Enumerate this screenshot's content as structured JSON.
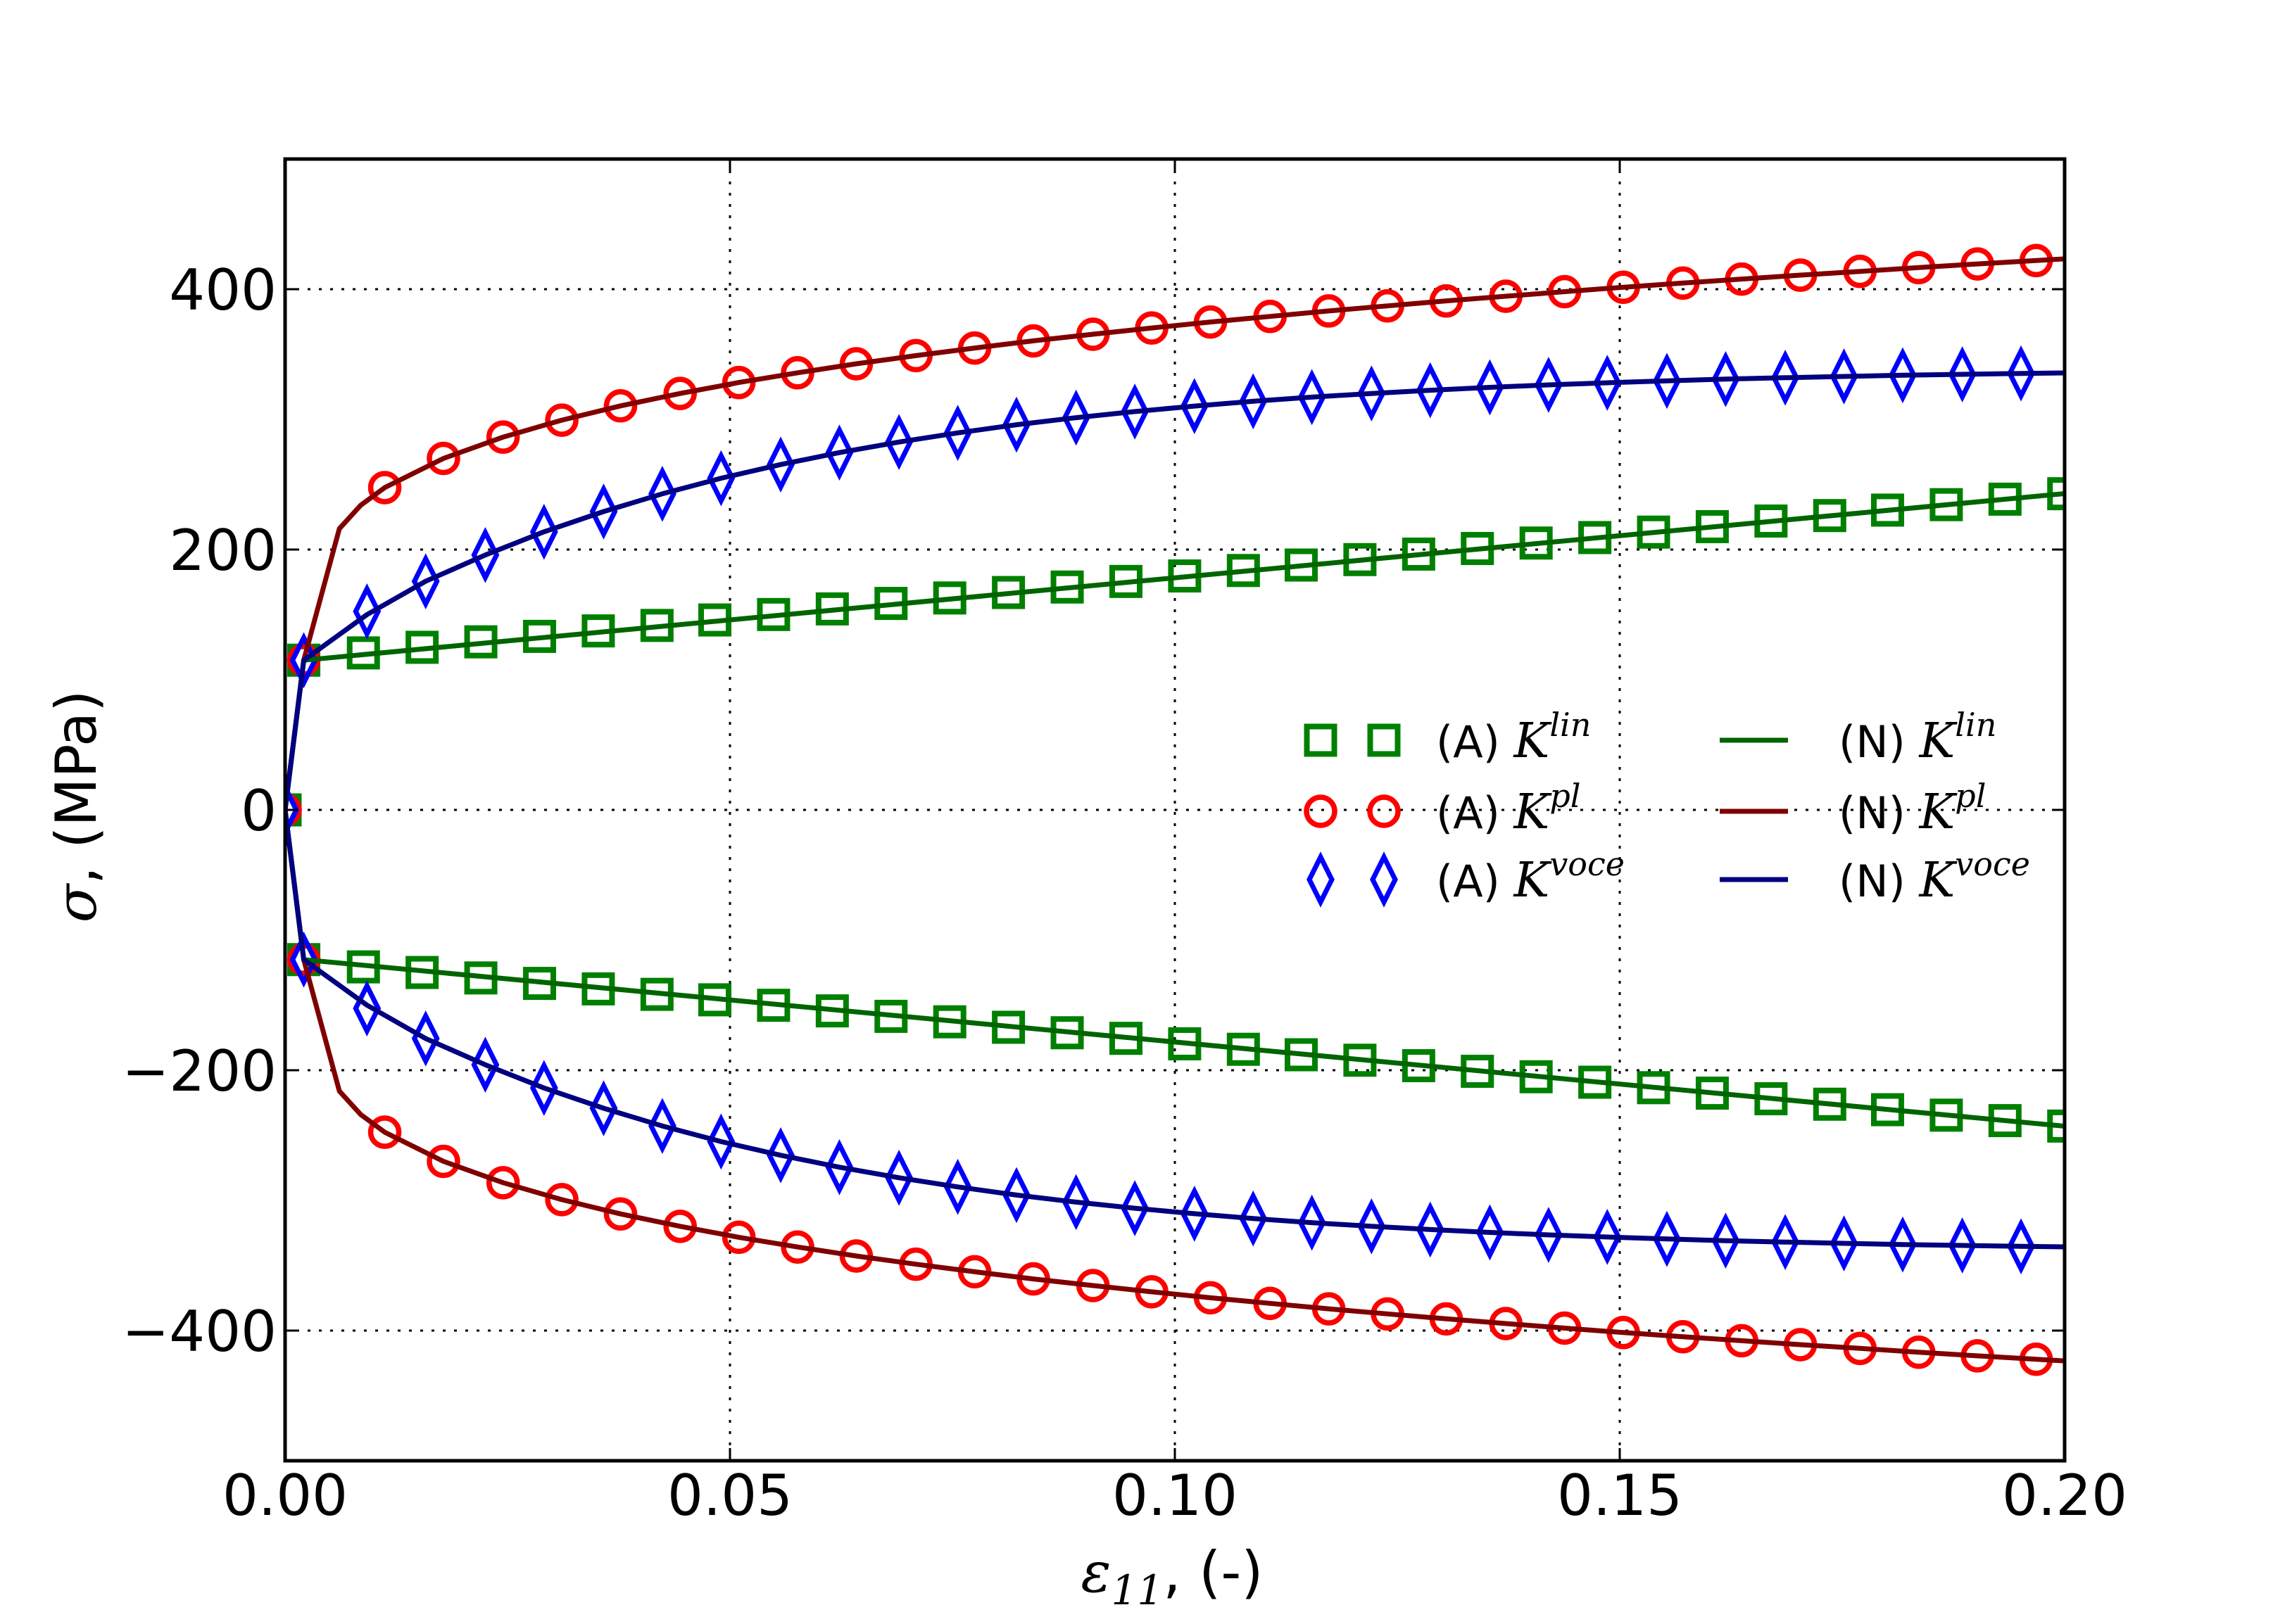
{
  "chart_data": {
    "type": "line",
    "title": "",
    "xlabel": {
      "symbol": "ε",
      "subscript": "11",
      "suffix": ", (-)"
    },
    "ylabel": {
      "symbol": "σ",
      "suffix": ", (MPa)"
    },
    "xlim": [
      0.0,
      0.2
    ],
    "ylim": [
      -500,
      500
    ],
    "xticks": [
      0.0,
      0.05,
      0.1,
      0.15,
      0.2
    ],
    "xtick_labels": [
      "0.00",
      "0.05",
      "0.10",
      "0.15",
      "0.20"
    ],
    "yticks": [
      -400,
      -200,
      0,
      200,
      400
    ],
    "ytick_labels": [
      "−400",
      "−200",
      "0",
      "200",
      "400"
    ],
    "grid": true,
    "legend_position": "center-right",
    "legend": [
      {
        "prefix": "(A) ",
        "symbol": "K",
        "sup": "lin",
        "marker": "square",
        "color": "#008000"
      },
      {
        "prefix": "(A) ",
        "symbol": "K",
        "sup": "pl",
        "marker": "circle",
        "color": "#ff0000"
      },
      {
        "prefix": "(A) ",
        "symbol": "K",
        "sup": "voce",
        "marker": "diamond",
        "color": "#0000ff"
      },
      {
        "prefix": "(N) ",
        "symbol": "K",
        "sup": "lin",
        "marker": "line",
        "color": "#006400"
      },
      {
        "prefix": "(N) ",
        "symbol": "K",
        "sup": "pl",
        "marker": "line",
        "color": "#800000"
      },
      {
        "prefix": "(N) ",
        "symbol": "K",
        "sup": "voce",
        "marker": "line",
        "color": "#000080"
      }
    ],
    "series": [
      {
        "name": "(A) K^lin",
        "style": "marker",
        "marker": "square",
        "color": "#008000",
        "x": [
          0,
          0.0021,
          0.0088,
          0.0154,
          0.022,
          0.0286,
          0.0352,
          0.0418,
          0.0483,
          0.0549,
          0.0615,
          0.0681,
          0.0747,
          0.0813,
          0.0879,
          0.0945,
          0.1011,
          0.1077,
          0.1142,
          0.1208,
          0.1274,
          0.134,
          0.1406,
          0.1472,
          0.1538,
          0.1604,
          0.167,
          0.1736,
          0.1801,
          0.1867,
          0.1933,
          0.1999
        ],
        "y_tension": [
          0,
          115,
          120.6,
          124.9,
          129.1,
          133.3,
          137.5,
          141.7,
          145.9,
          150.1,
          154.4,
          158.6,
          162.8,
          167.0,
          171.2,
          175.5,
          179.7,
          183.9,
          188.1,
          192.3,
          196.5,
          200.8,
          205.0,
          209.2,
          213.4,
          217.6,
          221.9,
          226.1,
          230.3,
          234.5,
          238.7,
          242.9
        ],
        "y_compression": [
          0,
          -115,
          -120.6,
          -124.9,
          -129.1,
          -133.3,
          -137.5,
          -141.7,
          -145.9,
          -150.1,
          -154.4,
          -158.6,
          -162.8,
          -167.0,
          -171.2,
          -175.5,
          -179.7,
          -183.9,
          -188.1,
          -192.3,
          -196.5,
          -200.8,
          -205.0,
          -209.2,
          -213.4,
          -217.6,
          -221.9,
          -226.1,
          -230.3,
          -234.5,
          -238.7,
          -242.9
        ]
      },
      {
        "name": "(A) K^pl",
        "style": "marker",
        "marker": "circle",
        "color": "#ff0000",
        "x": [
          0,
          0.0021,
          0.0112,
          0.0178,
          0.0245,
          0.0311,
          0.0377,
          0.0444,
          0.051,
          0.0576,
          0.0642,
          0.0709,
          0.0775,
          0.0841,
          0.0908,
          0.0974,
          0.104,
          0.1107,
          0.1173,
          0.1239,
          0.1305,
          0.1372,
          0.1438,
          0.1504,
          0.1571,
          0.1637,
          0.1703,
          0.177,
          0.1836,
          0.1902,
          0.1968
        ],
        "y_tension": [
          0,
          115,
          247.6,
          270.0,
          286.4,
          299.4,
          310.4,
          319.9,
          328.3,
          335.8,
          342.7,
          349.0,
          354.8,
          360.3,
          365.4,
          370.2,
          374.8,
          379.1,
          383.3,
          387.2,
          391.0,
          394.6,
          398.1,
          401.5,
          404.7,
          407.8,
          410.8,
          413.7,
          416.6,
          419.4,
          422.0
        ],
        "y_compression": [
          0,
          -115,
          -247.6,
          -270.0,
          -286.4,
          -299.4,
          -310.4,
          -319.9,
          -328.3,
          -335.8,
          -342.7,
          -349.0,
          -354.8,
          -360.3,
          -365.4,
          -370.2,
          -374.8,
          -379.1,
          -383.3,
          -387.2,
          -391.0,
          -394.6,
          -398.1,
          -401.5,
          -404.7,
          -407.8,
          -410.8,
          -413.7,
          -416.6,
          -419.4,
          -422.0
        ]
      },
      {
        "name": "(A) K^voce",
        "style": "marker",
        "marker": "diamond",
        "color": "#0000ff",
        "x": [
          0,
          0.0021,
          0.0092,
          0.0158,
          0.0225,
          0.0291,
          0.0358,
          0.0424,
          0.049,
          0.0557,
          0.0623,
          0.069,
          0.0756,
          0.0822,
          0.0889,
          0.0955,
          0.1022,
          0.1088,
          0.1154,
          0.1221,
          0.1287,
          0.1354,
          0.142,
          0.1486,
          0.1553,
          0.1619,
          0.1686,
          0.1752,
          0.1818,
          0.1885,
          0.1951
        ],
        "y_tension": [
          0,
          115,
          152.5,
          175.6,
          195.8,
          213.6,
          229.2,
          242.8,
          254.8,
          265.3,
          274.5,
          282.6,
          289.6,
          295.9,
          301.3,
          306.0,
          310.2,
          313.9,
          317.1,
          319.9,
          322.4,
          324.6,
          326.5,
          328.1,
          329.6,
          330.9,
          332.0,
          333.0,
          333.9,
          334.6,
          335.3
        ],
        "y_compression": [
          0,
          -115,
          -152.5,
          -175.6,
          -195.8,
          -213.6,
          -229.2,
          -242.8,
          -254.8,
          -265.3,
          -274.5,
          -282.6,
          -289.6,
          -295.9,
          -301.3,
          -306.0,
          -310.2,
          -313.9,
          -317.1,
          -319.9,
          -322.4,
          -324.6,
          -326.5,
          -328.1,
          -329.6,
          -330.9,
          -332.0,
          -333.0,
          -333.9,
          -334.6,
          -335.3
        ]
      },
      {
        "name": "(N) K^lin",
        "style": "line",
        "color": "#006400",
        "x": [
          0,
          0.0021,
          0.2
        ],
        "y_tension": [
          0,
          115,
          243.0
        ],
        "y_compression": [
          0,
          -115,
          -243.0
        ]
      },
      {
        "name": "(N) K^pl",
        "style": "line",
        "color": "#800000",
        "x": [
          0,
          0.0021,
          0.0061,
          0.0085,
          0.0112,
          0.0178,
          0.0245,
          0.0311,
          0.0377,
          0.0444,
          0.051,
          0.0576,
          0.0642,
          0.0709,
          0.0775,
          0.0841,
          0.0908,
          0.0974,
          0.104,
          0.1107,
          0.1173,
          0.1239,
          0.1305,
          0.1372,
          0.1438,
          0.1504,
          0.1571,
          0.1637,
          0.1703,
          0.177,
          0.1836,
          0.1902,
          0.1968,
          0.2
        ],
        "y_tension": [
          0,
          115,
          216,
          234,
          247.6,
          270.0,
          286.4,
          299.4,
          310.4,
          319.9,
          328.3,
          335.8,
          342.7,
          349.0,
          354.8,
          360.3,
          365.4,
          370.2,
          374.8,
          379.1,
          383.3,
          387.2,
          391.0,
          394.6,
          398.1,
          401.5,
          404.7,
          407.8,
          410.8,
          413.7,
          416.6,
          419.4,
          422.0,
          423.3
        ],
        "y_compression": [
          0,
          -115,
          -216,
          -234,
          -247.6,
          -270.0,
          -286.4,
          -299.4,
          -310.4,
          -319.9,
          -328.3,
          -335.8,
          -342.7,
          -349.0,
          -354.8,
          -360.3,
          -365.4,
          -370.2,
          -374.8,
          -379.1,
          -383.3,
          -387.2,
          -391.0,
          -394.6,
          -398.1,
          -401.5,
          -404.7,
          -407.8,
          -410.8,
          -413.7,
          -416.6,
          -419.4,
          -422.0,
          -423.3
        ]
      },
      {
        "name": "(N) K^voce",
        "style": "line",
        "color": "#000080",
        "x": [
          0,
          0.0021,
          0.0092,
          0.0158,
          0.0225,
          0.0291,
          0.0358,
          0.0424,
          0.049,
          0.0557,
          0.0623,
          0.069,
          0.0756,
          0.0822,
          0.0889,
          0.0955,
          0.1022,
          0.1088,
          0.1154,
          0.1221,
          0.1287,
          0.1354,
          0.142,
          0.1486,
          0.1553,
          0.1619,
          0.1686,
          0.1752,
          0.1818,
          0.1885,
          0.1951,
          0.2
        ],
        "y_tension": [
          0,
          115,
          150.0,
          175.6,
          195.8,
          213.6,
          229.2,
          242.8,
          254.8,
          265.3,
          274.5,
          282.6,
          289.6,
          295.9,
          301.3,
          306.0,
          310.2,
          313.9,
          317.1,
          319.9,
          322.4,
          324.6,
          326.5,
          328.1,
          329.6,
          330.9,
          332.0,
          333.0,
          333.9,
          334.6,
          335.3,
          335.7
        ],
        "y_compression": [
          0,
          -115,
          -150.0,
          -175.6,
          -195.8,
          -213.6,
          -229.2,
          -242.8,
          -254.8,
          -265.3,
          -274.5,
          -282.6,
          -289.6,
          -295.9,
          -301.3,
          -306.0,
          -310.2,
          -313.9,
          -317.1,
          -319.9,
          -322.4,
          -324.6,
          -326.5,
          -328.1,
          -329.6,
          -330.9,
          -332.0,
          -333.0,
          -333.9,
          -334.6,
          -335.3,
          -335.7
        ]
      }
    ]
  }
}
